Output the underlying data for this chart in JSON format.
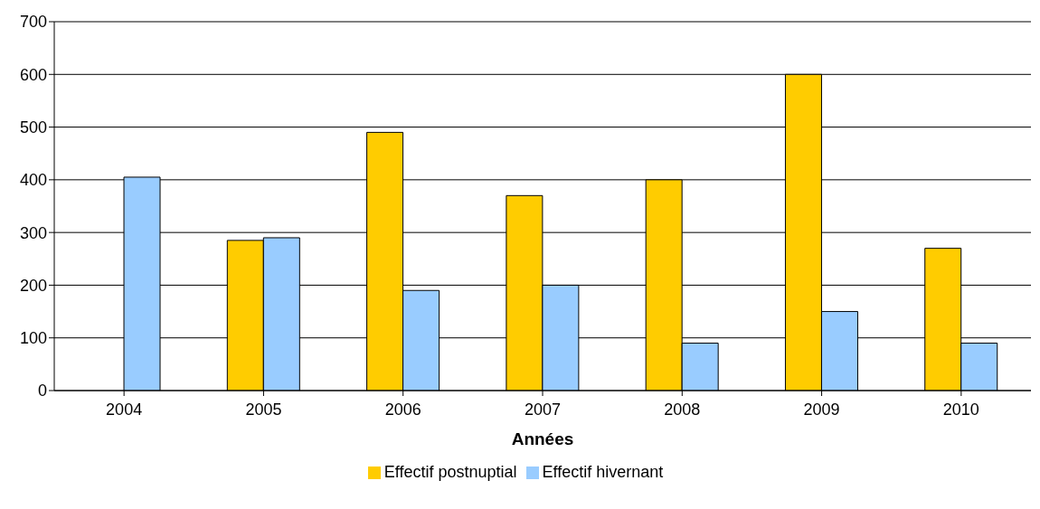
{
  "chart_data": {
    "type": "bar",
    "xlabel": "Années",
    "categories": [
      "2004",
      "2005",
      "2006",
      "2007",
      "2008",
      "2009",
      "2010"
    ],
    "series": [
      {
        "name": "Effectif postnuptial",
        "color": "#ffcc00",
        "values": [
          null,
          285,
          490,
          370,
          400,
          600,
          270
        ]
      },
      {
        "name": "Effectif hivernant",
        "color": "#99ccff",
        "values": [
          405,
          290,
          190,
          200,
          90,
          150,
          90
        ]
      }
    ],
    "ylim": [
      0,
      700
    ],
    "yticks": [
      0,
      100,
      200,
      300,
      400,
      500,
      600,
      700
    ],
    "grid": "y",
    "legend": "bottom"
  }
}
